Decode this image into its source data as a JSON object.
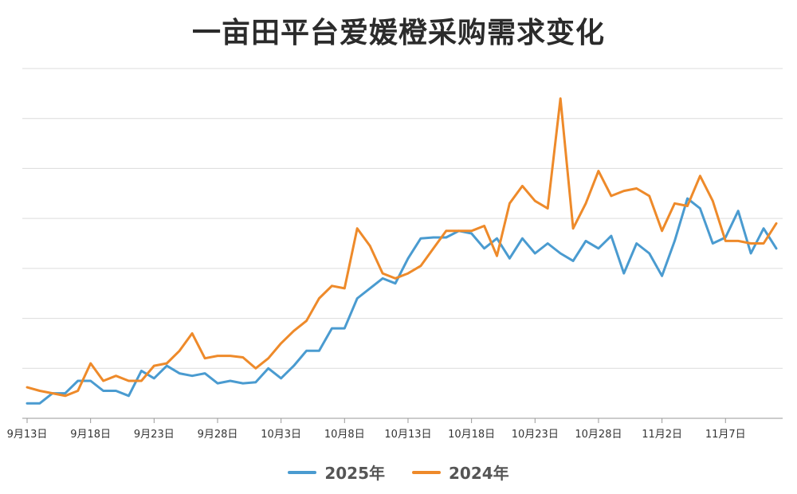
{
  "colors": {
    "s2025": "#4a9bd0",
    "s2024": "#ee8a2a",
    "grid": "#dcdcdc",
    "axis": "#999999"
  },
  "chart_data": {
    "type": "line",
    "title": "一亩田平台爱媛橙采购需求变化",
    "xlabel": "",
    "ylabel": "",
    "grid": true,
    "legend_position": "bottom",
    "ylim": [
      0,
      7
    ],
    "x_ticks": [
      {
        "index": 0,
        "label": "9月13日"
      },
      {
        "index": 5,
        "label": "9月18日"
      },
      {
        "index": 10,
        "label": "9月23日"
      },
      {
        "index": 15,
        "label": "9月28日"
      },
      {
        "index": 20,
        "label": "10月3日"
      },
      {
        "index": 25,
        "label": "10月8日"
      },
      {
        "index": 30,
        "label": "10月13日"
      },
      {
        "index": 35,
        "label": "10月18日"
      },
      {
        "index": 40,
        "label": "10月23日"
      },
      {
        "index": 45,
        "label": "10月28日"
      },
      {
        "index": 50,
        "label": "11月2日"
      },
      {
        "index": 55,
        "label": "11月7日"
      }
    ],
    "series": [
      {
        "name": "2025年",
        "color_key": "s2025",
        "values": [
          0.3,
          0.3,
          0.5,
          0.5,
          0.75,
          0.75,
          0.55,
          0.55,
          0.45,
          0.95,
          0.8,
          1.05,
          0.9,
          0.85,
          0.9,
          0.7,
          0.75,
          0.7,
          0.72,
          1.0,
          0.8,
          1.05,
          1.35,
          1.35,
          1.8,
          1.8,
          2.4,
          2.6,
          2.8,
          2.7,
          3.2,
          3.6,
          3.62,
          3.62,
          3.75,
          3.7,
          3.4,
          3.6,
          3.2,
          3.6,
          3.3,
          3.5,
          3.3,
          3.15,
          3.55,
          3.4,
          3.65,
          2.9,
          3.5,
          3.3,
          2.85,
          3.55,
          4.4,
          4.2,
          3.5,
          3.62,
          4.15,
          3.3,
          3.8,
          3.4
        ]
      },
      {
        "name": "2024年",
        "color_key": "s2024",
        "values": [
          0.62,
          0.55,
          0.5,
          0.45,
          0.55,
          1.1,
          0.75,
          0.85,
          0.75,
          0.75,
          1.05,
          1.1,
          1.35,
          1.7,
          1.2,
          1.25,
          1.25,
          1.22,
          1.0,
          1.2,
          1.5,
          1.75,
          1.95,
          2.4,
          2.65,
          2.6,
          3.8,
          3.45,
          2.9,
          2.8,
          2.9,
          3.05,
          3.4,
          3.75,
          3.75,
          3.75,
          3.85,
          3.25,
          4.3,
          4.65,
          4.35,
          4.2,
          6.4,
          3.8,
          4.3,
          4.95,
          4.45,
          4.55,
          4.6,
          4.45,
          3.75,
          4.3,
          4.25,
          4.85,
          4.35,
          3.55,
          3.55,
          3.5,
          3.5,
          3.9
        ]
      }
    ]
  }
}
